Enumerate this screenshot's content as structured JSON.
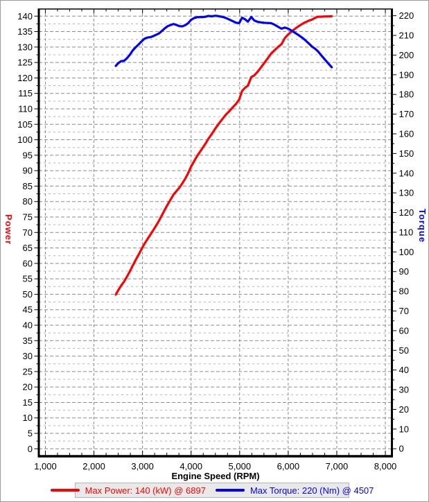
{
  "window": {
    "background": "#ffffff",
    "border_color": "#9a9a9a"
  },
  "chart_data": {
    "type": "line",
    "title": "",
    "grid": {
      "on": true,
      "major_color": "#8a8a8a",
      "minor_color": "#b5b5b5"
    },
    "legend_position": "bottom",
    "x_axis": {
      "label": "Engine Speed (RPM)",
      "min": 865,
      "max": 8135,
      "major_tick_start": 1000,
      "major_tick_end": 8000,
      "major_tick_step": 1000,
      "minor_tick_step": 250,
      "tick_labels": [
        "1,000",
        "2,000",
        "3,000",
        "4,000",
        "5,000",
        "6,000",
        "7,000",
        "8,000"
      ]
    },
    "y_left": {
      "label": "Power",
      "units": "kW",
      "color": "#ff0000",
      "min": -2.4,
      "max": 142.3,
      "tick_min": 0,
      "tick_max": 140,
      "major_tick_step": 5,
      "minor_tick_step": 2.5
    },
    "y_right": {
      "label": "Torque",
      "units": "Nm",
      "color": "#0000ff",
      "min": -3.8,
      "max": 223.4,
      "tick_min": 0,
      "tick_max": 220,
      "major_tick_step": 10,
      "minor_tick_step": 5
    },
    "series": [
      {
        "name": "Power",
        "axis": "left",
        "color": "#ff0000",
        "line_width": 3.2,
        "max_value": 140,
        "max_units": "kW",
        "max_rpm": 6897,
        "points": [
          [
            2450,
            49.9
          ],
          [
            2500,
            51.3
          ],
          [
            2560,
            52.8
          ],
          [
            2620,
            54.1
          ],
          [
            2680,
            55.7
          ],
          [
            2740,
            57.4
          ],
          [
            2800,
            59.3
          ],
          [
            2860,
            61.1
          ],
          [
            2920,
            62.8
          ],
          [
            2980,
            64.6
          ],
          [
            3040,
            66.3
          ],
          [
            3100,
            67.8
          ],
          [
            3160,
            69.2
          ],
          [
            3220,
            70.7
          ],
          [
            3280,
            72.2
          ],
          [
            3340,
            73.8
          ],
          [
            3400,
            75.6
          ],
          [
            3460,
            77.4
          ],
          [
            3520,
            79.1
          ],
          [
            3580,
            80.7
          ],
          [
            3640,
            82.3
          ],
          [
            3700,
            83.4
          ],
          [
            3760,
            84.5
          ],
          [
            3820,
            85.9
          ],
          [
            3880,
            87.4
          ],
          [
            3940,
            89.2
          ],
          [
            4000,
            91.3
          ],
          [
            4060,
            93.0
          ],
          [
            4120,
            94.6
          ],
          [
            4180,
            96.0
          ],
          [
            4240,
            97.4
          ],
          [
            4300,
            98.8
          ],
          [
            4360,
            100.4
          ],
          [
            4420,
            101.7
          ],
          [
            4507,
            103.8
          ],
          [
            4580,
            105.4
          ],
          [
            4650,
            106.8
          ],
          [
            4720,
            108.2
          ],
          [
            4790,
            109.3
          ],
          [
            4860,
            110.5
          ],
          [
            4930,
            111.7
          ],
          [
            4990,
            113.0
          ],
          [
            5050,
            115.8
          ],
          [
            5110,
            116.8
          ],
          [
            5170,
            117.5
          ],
          [
            5240,
            120.3
          ],
          [
            5300,
            120.8
          ],
          [
            5370,
            122.0
          ],
          [
            5440,
            123.4
          ],
          [
            5510,
            124.9
          ],
          [
            5580,
            126.4
          ],
          [
            5650,
            127.9
          ],
          [
            5720,
            129.0
          ],
          [
            5790,
            130.0
          ],
          [
            5860,
            130.9
          ],
          [
            5930,
            132.9
          ],
          [
            6000,
            134.1
          ],
          [
            6070,
            135.0
          ],
          [
            6140,
            135.9
          ],
          [
            6210,
            136.7
          ],
          [
            6280,
            137.4
          ],
          [
            6350,
            138.0
          ],
          [
            6420,
            138.5
          ],
          [
            6490,
            138.9
          ],
          [
            6550,
            139.4
          ],
          [
            6610,
            139.8
          ],
          [
            6680,
            139.8
          ],
          [
            6750,
            139.9
          ],
          [
            6820,
            139.9
          ],
          [
            6897,
            140.0
          ]
        ]
      },
      {
        "name": "Torque",
        "axis": "right",
        "color": "#0000ff",
        "line_width": 3.2,
        "max_value": 220,
        "max_units": "Nm",
        "max_rpm": 4507,
        "points": [
          [
            2450,
            194.5
          ],
          [
            2500,
            195.9
          ],
          [
            2560,
            196.9
          ],
          [
            2620,
            197.1
          ],
          [
            2680,
            198.4
          ],
          [
            2740,
            200.2
          ],
          [
            2800,
            202.4
          ],
          [
            2860,
            204.0
          ],
          [
            2920,
            205.4
          ],
          [
            2980,
            206.9
          ],
          [
            3040,
            208.3
          ],
          [
            3100,
            208.9
          ],
          [
            3160,
            209.1
          ],
          [
            3220,
            209.6
          ],
          [
            3280,
            210.3
          ],
          [
            3340,
            211.0
          ],
          [
            3400,
            212.3
          ],
          [
            3460,
            213.6
          ],
          [
            3520,
            214.7
          ],
          [
            3580,
            215.3
          ],
          [
            3640,
            215.8
          ],
          [
            3700,
            215.3
          ],
          [
            3760,
            214.7
          ],
          [
            3820,
            214.6
          ],
          [
            3880,
            215.2
          ],
          [
            3940,
            216.2
          ],
          [
            4000,
            217.9
          ],
          [
            4060,
            218.8
          ],
          [
            4120,
            219.2
          ],
          [
            4180,
            219.3
          ],
          [
            4240,
            219.3
          ],
          [
            4300,
            219.5
          ],
          [
            4360,
            219.9
          ],
          [
            4420,
            219.7
          ],
          [
            4507,
            220.0
          ],
          [
            4580,
            219.7
          ],
          [
            4650,
            219.4
          ],
          [
            4720,
            218.8
          ],
          [
            4790,
            218.0
          ],
          [
            4860,
            217.2
          ],
          [
            4930,
            216.4
          ],
          [
            4990,
            216.2
          ],
          [
            5050,
            219.0
          ],
          [
            5110,
            218.2
          ],
          [
            5170,
            217.0
          ],
          [
            5240,
            219.3
          ],
          [
            5300,
            217.6
          ],
          [
            5370,
            216.9
          ],
          [
            5440,
            216.6
          ],
          [
            5510,
            216.4
          ],
          [
            5580,
            216.3
          ],
          [
            5650,
            216.2
          ],
          [
            5720,
            215.4
          ],
          [
            5790,
            214.4
          ],
          [
            5860,
            213.4
          ],
          [
            5930,
            214.0
          ],
          [
            6000,
            213.4
          ],
          [
            6070,
            212.4
          ],
          [
            6140,
            211.3
          ],
          [
            6210,
            210.2
          ],
          [
            6280,
            209.0
          ],
          [
            6350,
            207.6
          ],
          [
            6420,
            206.0
          ],
          [
            6490,
            204.3
          ],
          [
            6550,
            203.3
          ],
          [
            6610,
            202.0
          ],
          [
            6680,
            199.9
          ],
          [
            6750,
            197.9
          ],
          [
            6820,
            195.9
          ],
          [
            6897,
            193.8
          ]
        ]
      }
    ]
  },
  "legend": {
    "items": [
      {
        "label": "Max Power: 140 (kW) @ 6897",
        "color": "#ff0000"
      },
      {
        "label": "Max Torque: 220 (Nm) @ 4507",
        "color": "#0000ff"
      }
    ]
  }
}
